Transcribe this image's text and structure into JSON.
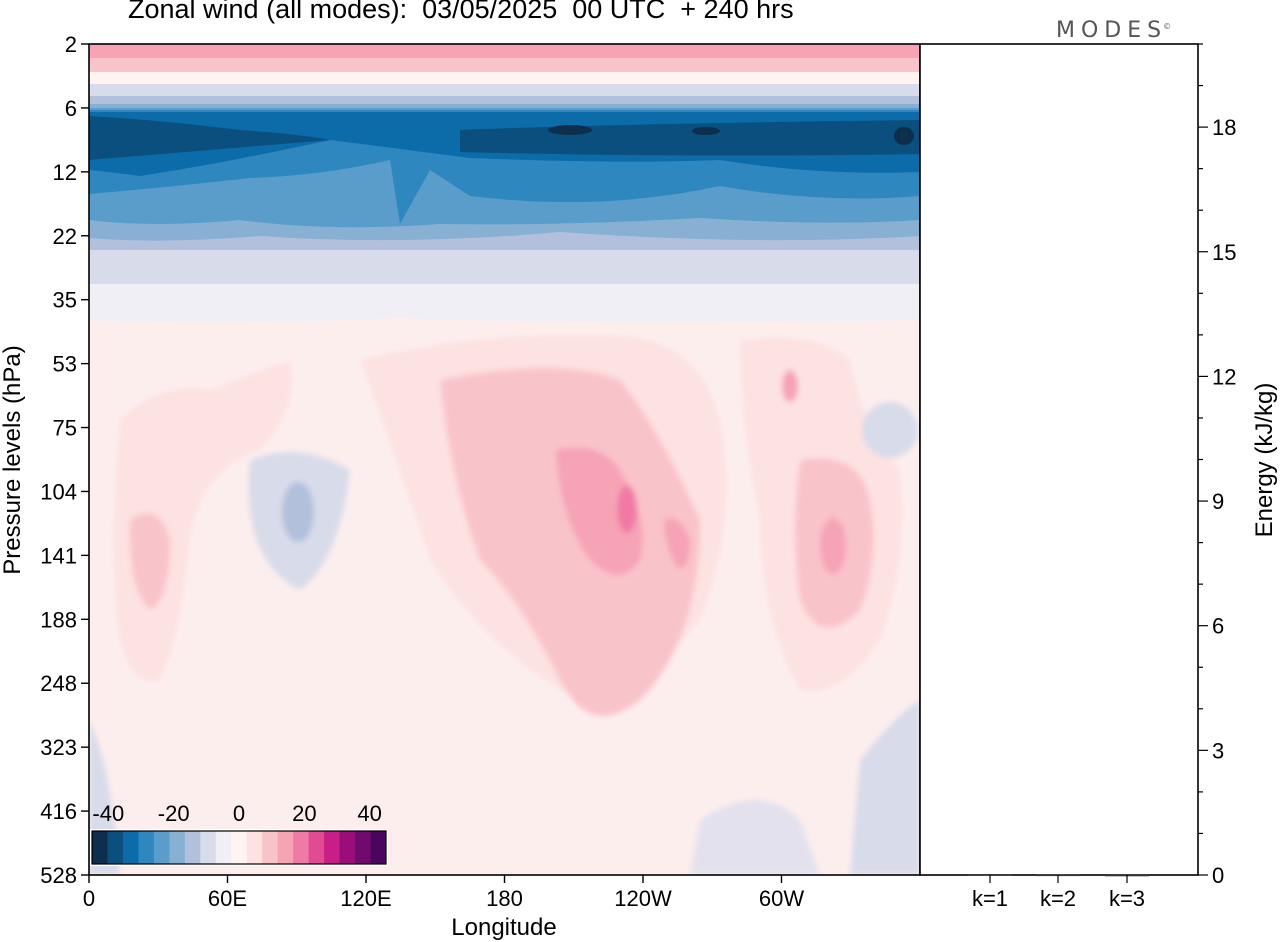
{
  "chart_data": [
    {
      "type": "heatmap",
      "title": "Zonal wind (all modes):  03/05/2025  00 UTC  + 240 hrs",
      "brand": "MODES",
      "brand_mark": "©",
      "xlabel": "Longitude",
      "ylabel": "Pressure levels (hPa)",
      "x_ticks": [
        "0",
        "60E",
        "120E",
        "180",
        "120W",
        "60W"
      ],
      "y_ticks": [
        "2",
        "6",
        "12",
        "22",
        "35",
        "53",
        "75",
        "104",
        "141",
        "188",
        "248",
        "323",
        "416",
        "528"
      ],
      "y_scale": "log (pressure, increasing downward)",
      "colorbar": {
        "ticks": [
          "-40",
          "-20",
          "0",
          "20",
          "40"
        ],
        "range": [
          -45,
          45
        ],
        "step": 5,
        "colors": [
          "#0d2e4d",
          "#0a4f7e",
          "#0b6ca9",
          "#2f87bf",
          "#5a9dca",
          "#88b0d3",
          "#b2c0dc",
          "#d8dbea",
          "#f1eff6",
          "#fff4f0",
          "#fde2e2",
          "#f9c3ca",
          "#f6a3b6",
          "#f07aa5",
          "#e04b93",
          "#c71f86",
          "#9a0e7a",
          "#700a6e",
          "#49065c"
        ]
      },
      "contour_note": "Filled contours of zonal wind (m/s) over longitude vs pressure: strong easterlies (-35 to -45) near 6-12 hPa, weak westerly maxima (15-25) near 104-141 hPa around 120W-60W."
    },
    {
      "type": "bar",
      "categories": [
        "k=1",
        "k=2",
        "k=3"
      ],
      "values": [
        0.02,
        0.01,
        0.005
      ],
      "ylabel": "Energy (kJ/kg)",
      "y_ticks": [
        "0",
        "3",
        "6",
        "9",
        "12",
        "15",
        "18"
      ],
      "ylim": [
        0,
        20
      ]
    }
  ]
}
